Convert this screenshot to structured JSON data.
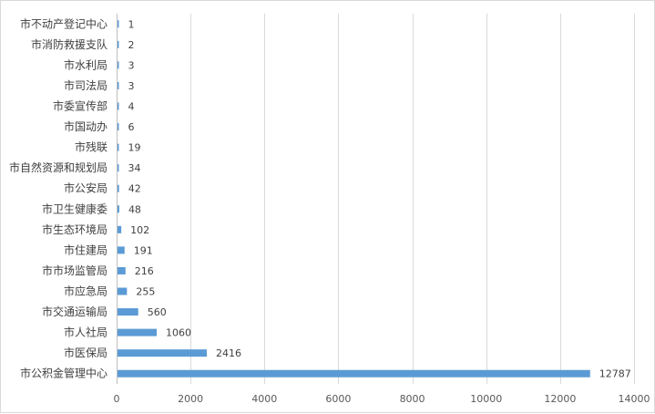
{
  "chart_data": {
    "type": "bar",
    "orientation": "horizontal",
    "categories": [
      "市不动产登记中心",
      "市消防救援支队",
      "市水利局",
      "市司法局",
      "市委宣传部",
      "市国动办",
      "市残联",
      "市自然资源和规划局",
      "市公安局",
      "市卫生健康委",
      "市生态环境局",
      "市住建局",
      "市市场监管局",
      "市应急局",
      "市交通运输局",
      "市人社局",
      "市医保局",
      "市公积金管理中心"
    ],
    "values": [
      1,
      2,
      3,
      3,
      4,
      6,
      19,
      34,
      42,
      48,
      102,
      191,
      216,
      255,
      560,
      1060,
      2416,
      12787
    ],
    "xlim": [
      0,
      14000
    ],
    "x_ticks": [
      "0",
      "2000",
      "4000",
      "6000",
      "8000",
      "10000",
      "12000",
      "14000"
    ],
    "x_tick_values": [
      0,
      2000,
      4000,
      6000,
      8000,
      10000,
      12000,
      14000
    ],
    "grid": "vertical",
    "bar_color": "#5b9bd5",
    "data_labels": true,
    "title": "",
    "xlabel": "",
    "ylabel": ""
  }
}
